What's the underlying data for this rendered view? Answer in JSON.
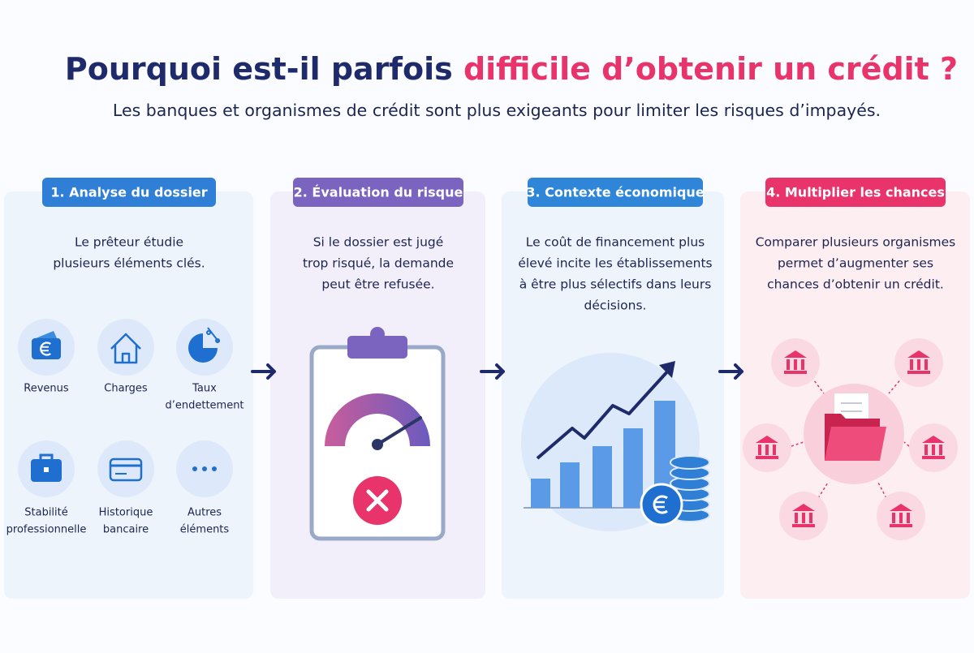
{
  "header": {
    "title_start": "Pourquoi est-il parfois ",
    "title_highlight": "difficile d’obtenir un crédit ?",
    "subtitle": "Les banques et organismes de crédit sont plus exigeants pour limiter les risques d’impayés."
  },
  "columns": [
    {
      "badge": "1. Analyse du dossier",
      "lines": [
        "Le prêteur étudie",
        "plusieurs éléments clés."
      ],
      "items": [
        {
          "lines": [
            "Revenus"
          ]
        },
        {
          "lines": [
            "Charges"
          ]
        },
        {
          "lines": [
            "Taux",
            "d’endettement"
          ]
        },
        {
          "lines": [
            "Stabilité",
            "professionnelle"
          ]
        },
        {
          "lines": [
            "Historique",
            "bancaire"
          ]
        },
        {
          "lines": [
            "Autres",
            "éléments"
          ]
        }
      ]
    },
    {
      "badge": "2. Évaluation du risque",
      "lines": [
        "Si le dossier est jugé",
        "trop risqué, la demande",
        "peut être refusée."
      ]
    },
    {
      "badge": "3. Contexte économique",
      "lines": [
        "Le coût de financement plus",
        "élevé incite les établissements",
        "à être plus sélectifs dans leurs",
        "décisions."
      ]
    },
    {
      "badge": "4. Multiplier les chances",
      "lines": [
        "Comparer plusieurs organismes",
        "permet d’augmenter ses",
        "chances d’obtenir un crédit."
      ]
    }
  ]
}
